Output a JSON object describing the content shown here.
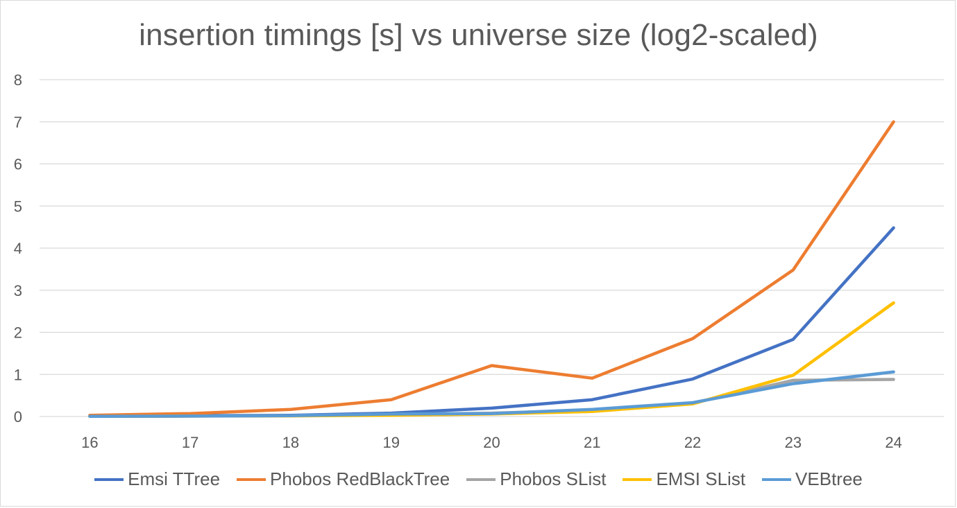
{
  "chart_data": {
    "type": "line",
    "title": "insertion timings [s] vs universe size (log2-scaled)",
    "xlabel": "",
    "ylabel": "",
    "categories": [
      "16",
      "17",
      "18",
      "19",
      "20",
      "21",
      "22",
      "23",
      "24"
    ],
    "ylim": [
      0,
      8
    ],
    "yticks": [
      "0",
      "1",
      "2",
      "3",
      "4",
      "5",
      "6",
      "7",
      "8"
    ],
    "grid": true,
    "legend_position": "bottom",
    "series": [
      {
        "name": "Emsi TTree",
        "color": "#4472c4",
        "values": [
          0.01,
          0.02,
          0.03,
          0.08,
          0.2,
          0.4,
          0.89,
          1.83,
          4.48
        ]
      },
      {
        "name": "Phobos RedBlackTree",
        "color": "#ed7d31",
        "values": [
          0.03,
          0.07,
          0.17,
          0.4,
          1.21,
          0.91,
          1.85,
          3.48,
          7.0
        ]
      },
      {
        "name": "Phobos SList",
        "color": "#a5a5a5",
        "values": [
          0.005,
          0.01,
          0.02,
          0.05,
          0.08,
          0.15,
          0.32,
          0.86,
          0.88
        ]
      },
      {
        "name": "EMSI SList",
        "color": "#ffc000",
        "values": [
          0.005,
          0.01,
          0.015,
          0.03,
          0.06,
          0.12,
          0.3,
          0.98,
          2.7
        ]
      },
      {
        "name": "VEBtree",
        "color": "#5b9bd5",
        "values": [
          0.005,
          0.01,
          0.02,
          0.06,
          0.07,
          0.17,
          0.33,
          0.78,
          1.06
        ]
      }
    ]
  }
}
